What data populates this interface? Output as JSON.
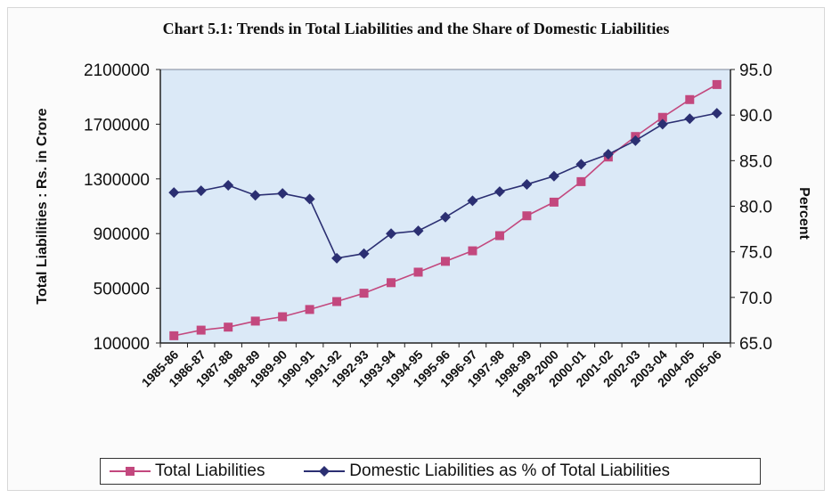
{
  "chart_data": {
    "type": "line",
    "title": "Chart 5.1: Trends in Total Liabilities and the Share of Domestic Liabilities",
    "xlabel": "",
    "ylabel_left": "Total Liabilities : Rs. in Crore",
    "ylabel_right": "Percent",
    "categories": [
      "1985-86",
      "1986-87",
      "1987-88",
      "1988-89",
      "1989-90",
      "1990-91",
      "1991-92",
      "1992-93",
      "1993-94",
      "1994-95",
      "1995-96",
      "1996-97",
      "1997-98",
      "1998-99",
      "1999-2000",
      "2000-01",
      "2001-02",
      "2002-03",
      "2003-04",
      "2004-05",
      "2005-06"
    ],
    "ylim_left": [
      100000,
      2100000
    ],
    "yticks_left": [
      "2100000",
      "1700000",
      "1300000",
      "900000",
      "500000",
      "100000"
    ],
    "ylim_right": [
      65.0,
      95.0
    ],
    "yticks_right": [
      "95.0",
      "90.0",
      "85.0",
      "80.0",
      "75.0",
      "70.0",
      "65.0"
    ],
    "grid": false,
    "legend_position": "bottom",
    "plot_background": "#dbe9f7",
    "series": [
      {
        "name": "Total Liabilities",
        "axis": "left",
        "color": "#c3487e",
        "marker": "square",
        "values": [
          153000,
          194000,
          216000,
          260000,
          292000,
          345000,
          403000,
          464000,
          541000,
          618000,
          697000,
          774000,
          885000,
          1030000,
          1130000,
          1280000,
          1460000,
          1610000,
          1750000,
          1880000,
          1990000
        ]
      },
      {
        "name": "Domestic Liabilities as % of Total Liabilities",
        "axis": "right",
        "color": "#2b2f72",
        "marker": "diamond",
        "values": [
          81.5,
          81.7,
          82.3,
          81.2,
          81.4,
          80.8,
          74.3,
          74.8,
          77.0,
          77.3,
          78.8,
          80.6,
          81.6,
          82.4,
          83.3,
          84.6,
          85.7,
          87.2,
          89.0,
          89.6,
          90.2
        ]
      }
    ]
  },
  "legend": {
    "total_label": "Total Liabilities",
    "domestic_label": "Domestic Liabilities as % of Total Liabilities"
  }
}
